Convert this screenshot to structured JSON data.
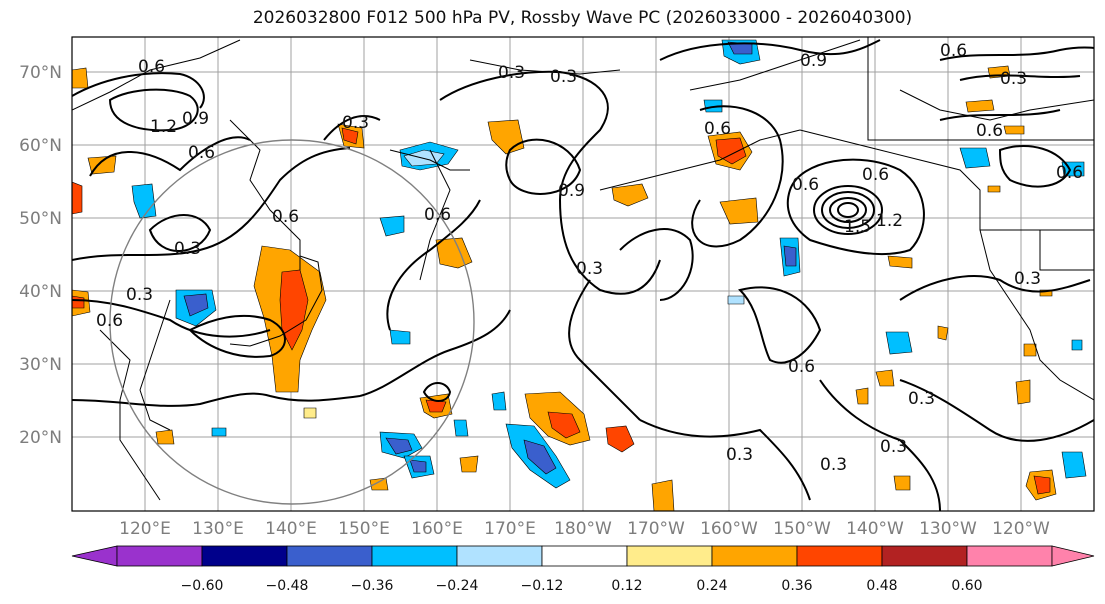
{
  "title": "2026032800 F012 500 hPa PV, Rossby Wave PC (2026033000 - 2026040300)",
  "lat_labels": [
    "70°N",
    "60°N",
    "50°N",
    "40°N",
    "30°N",
    "20°N"
  ],
  "lon_labels": [
    "120°E",
    "130°E",
    "140°E",
    "150°E",
    "160°E",
    "170°E",
    "180°W",
    "170°W",
    "160°W",
    "150°W",
    "140°W",
    "130°W",
    "120°W"
  ],
  "colorbar": {
    "ticks": [
      "−0.60",
      "−0.48",
      "−0.36",
      "−0.24",
      "−0.12",
      "0.12",
      "0.24",
      "0.36",
      "0.48",
      "0.60"
    ],
    "colors": [
      "#9a32cd",
      "#00008b",
      "#3a5fcd",
      "#00bfff",
      "#b0e2ff",
      "#ffffff",
      "#ffec8b",
      "#ffa500",
      "#ff4500",
      "#b22222",
      "#ff82ab",
      "#ff82ab"
    ]
  },
  "contour_labels": [
    "0.6",
    "1.2",
    "0.9",
    "0.6",
    "0.3",
    "0.3",
    "0.3",
    "0.6",
    "0.6",
    "0.9",
    "0.6",
    "0.3",
    "0.6",
    "0.9",
    "0.6",
    "0.6",
    "1.5",
    "1.2",
    "0.6",
    "0.6",
    "0.3",
    "0.3",
    "0.6",
    "0.3",
    "0.3",
    "0.3",
    "0.3",
    "0.6",
    "0.3",
    "0.3"
  ]
}
